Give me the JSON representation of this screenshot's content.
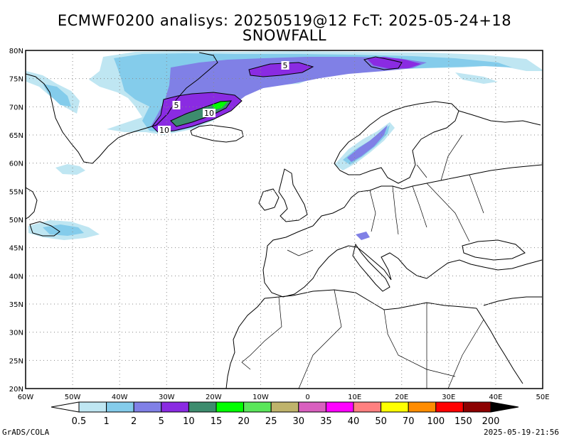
{
  "title": {
    "line1": "ECMWF0200 analisys: 20250519@12 FcT: 2025-05-24+18",
    "line2": "SNOWFALL"
  },
  "axes": {
    "lat_labels": [
      "80N",
      "75N",
      "70N",
      "65N",
      "60N",
      "55N",
      "50N",
      "45N",
      "40N",
      "35N",
      "30N",
      "25N",
      "20N"
    ],
    "lon_labels": [
      "60W",
      "50W",
      "40W",
      "30W",
      "20W",
      "10W",
      "0",
      "10E",
      "20E",
      "30E",
      "40E",
      "50E"
    ],
    "lat_range": [
      20,
      80
    ],
    "lon_range": [
      -60,
      50
    ],
    "grid": true
  },
  "contour_labels": [
    "5",
    "5",
    "10",
    "10"
  ],
  "colorbar": {
    "levels": [
      "0.5",
      "1",
      "2",
      "5",
      "10",
      "15",
      "20",
      "25",
      "30",
      "35",
      "40",
      "50",
      "70",
      "100",
      "150",
      "200"
    ],
    "colors": [
      "#bfe6f2",
      "#84cceb",
      "#8080e6",
      "#8a2be2",
      "#3d8c6e",
      "#00ff00",
      "#5ae65a",
      "#bfb36b",
      "#d95fbf",
      "#ff00ff",
      "#ff8080",
      "#ffff00",
      "#ff8c00",
      "#ff0000",
      "#8c0000"
    ]
  },
  "footer": {
    "left": "GrADS/COLA",
    "right": "2025-05-19-21:56"
  }
}
